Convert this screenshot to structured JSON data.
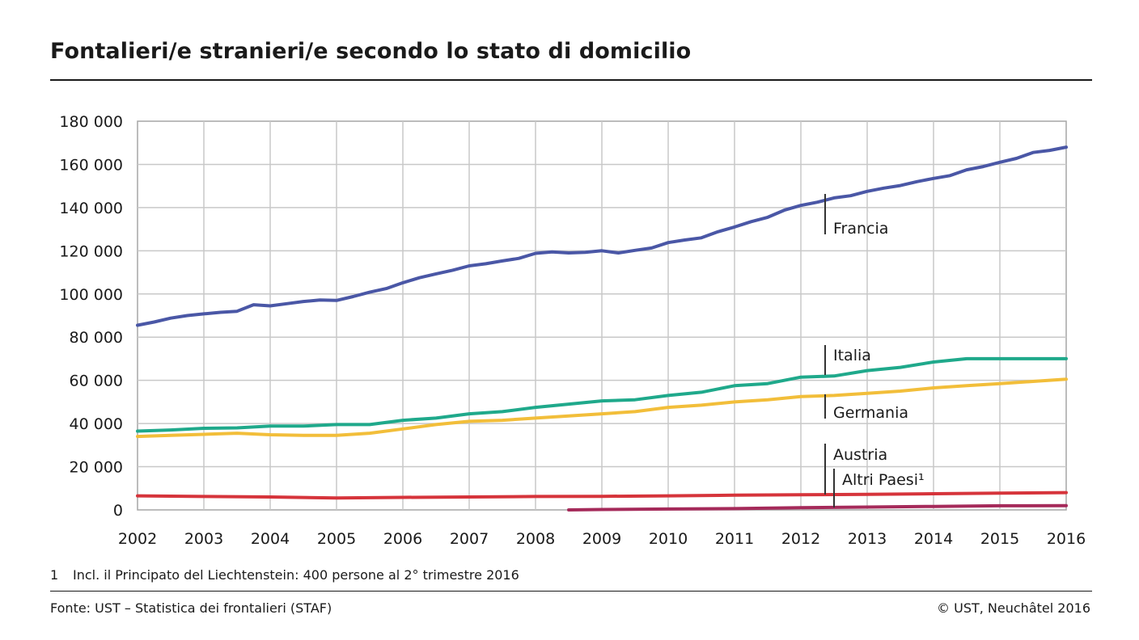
{
  "header": {
    "title": "Fontalieri/e stranieri/e secondo lo stato di domicilio"
  },
  "footer": {
    "footnote_number": "1",
    "footnote_text": "Incl. il Principato del Liechtenstein: 400 persone al 2° trimestre 2016",
    "source": "Fonte: UST – Statistica dei frontalieri (STAF)",
    "copyright": "© UST, Neuchâtel 2016"
  },
  "chart_data": {
    "type": "line",
    "xlim": [
      2002,
      2016
    ],
    "ylim": [
      0,
      180000
    ],
    "grid": true,
    "xticks": [
      "2002",
      "2003",
      "2004",
      "2005",
      "2006",
      "2007",
      "2008",
      "2009",
      "2010",
      "2011",
      "2012",
      "2013",
      "2014",
      "2015",
      "2016"
    ],
    "yticks": [
      "0",
      "20 000",
      "40 000",
      "60 000",
      "80 000",
      "100 000",
      "120 000",
      "140 000",
      "160 000",
      "180 000"
    ],
    "ytick_values": [
      0,
      20000,
      40000,
      60000,
      80000,
      100000,
      120000,
      140000,
      160000,
      180000
    ],
    "series": [
      {
        "name": "Francia",
        "color": "#4a57a6",
        "x": [
          2002.0,
          2002.25,
          2002.5,
          2002.75,
          2003.0,
          2003.25,
          2003.5,
          2003.75,
          2004.0,
          2004.25,
          2004.5,
          2004.75,
          2005.0,
          2005.25,
          2005.5,
          2005.75,
          2006.0,
          2006.25,
          2006.5,
          2006.75,
          2007.0,
          2007.25,
          2007.5,
          2007.75,
          2008.0,
          2008.25,
          2008.5,
          2008.75,
          2009.0,
          2009.25,
          2009.5,
          2009.75,
          2010.0,
          2010.25,
          2010.5,
          2010.75,
          2011.0,
          2011.25,
          2011.5,
          2011.75,
          2012.0,
          2012.25,
          2012.5,
          2012.75,
          2013.0,
          2013.25,
          2013.5,
          2013.75,
          2014.0,
          2014.25,
          2014.5,
          2014.75,
          2015.0,
          2015.25,
          2015.5,
          2015.75,
          2016.0
        ],
        "values": [
          85500,
          87000,
          88800,
          90000,
          90800,
          91500,
          92000,
          95000,
          94500,
          95500,
          96500,
          97200,
          97000,
          98800,
          100800,
          102500,
          105200,
          107500,
          109300,
          111000,
          113000,
          114000,
          115300,
          116500,
          118800,
          119500,
          119000,
          119300,
          120000,
          119000,
          120200,
          121300,
          123800,
          125000,
          126000,
          128800,
          131000,
          133500,
          135500,
          138800,
          141000,
          142500,
          144500,
          145500,
          147500,
          149000,
          150200,
          152000,
          153500,
          154800,
          157500,
          159000,
          161000,
          162800,
          165500,
          166500,
          168000
        ]
      },
      {
        "name": "Italia",
        "color": "#1fa98b",
        "x": [
          2002.0,
          2002.5,
          2003.0,
          2003.5,
          2004.0,
          2004.5,
          2005.0,
          2005.5,
          2006.0,
          2006.5,
          2007.0,
          2007.5,
          2008.0,
          2008.5,
          2009.0,
          2009.5,
          2010.0,
          2010.5,
          2011.0,
          2011.5,
          2012.0,
          2012.5,
          2013.0,
          2013.5,
          2014.0,
          2014.5,
          2015.0,
          2015.5,
          2016.0
        ],
        "values": [
          36500,
          37000,
          37800,
          38000,
          38800,
          38800,
          39500,
          39500,
          41500,
          42500,
          44500,
          45500,
          47500,
          49000,
          50500,
          51000,
          53000,
          54500,
          57500,
          58500,
          61500,
          62000,
          64500,
          66000,
          68500,
          70000,
          70000,
          70000,
          70000
        ]
      },
      {
        "name": "Germania",
        "color": "#f2be3a",
        "x": [
          2002.0,
          2002.5,
          2003.0,
          2003.5,
          2004.0,
          2004.5,
          2005.0,
          2005.5,
          2006.0,
          2006.5,
          2007.0,
          2007.5,
          2008.0,
          2008.5,
          2009.0,
          2009.5,
          2010.0,
          2010.5,
          2011.0,
          2011.5,
          2012.0,
          2012.5,
          2013.0,
          2013.5,
          2014.0,
          2014.5,
          2015.0,
          2015.5,
          2016.0
        ],
        "values": [
          34000,
          34500,
          35000,
          35500,
          34800,
          34500,
          34500,
          35500,
          37500,
          39500,
          41000,
          41500,
          42500,
          43500,
          44500,
          45500,
          47500,
          48500,
          50000,
          51000,
          52500,
          53000,
          54000,
          55000,
          56500,
          57500,
          58500,
          59500,
          60500
        ]
      },
      {
        "name": "Austria",
        "color": "#d6343b",
        "x": [
          2002.0,
          2003.0,
          2004.0,
          2005.0,
          2006.0,
          2007.0,
          2008.0,
          2009.0,
          2010.0,
          2011.0,
          2012.0,
          2013.0,
          2014.0,
          2015.0,
          2016.0
        ],
        "values": [
          6500,
          6200,
          6000,
          5500,
          5800,
          6000,
          6200,
          6300,
          6500,
          6800,
          7000,
          7200,
          7500,
          7800,
          8000
        ]
      },
      {
        "name": "Altri Paesi¹",
        "color": "#a52a5a",
        "x": [
          2008.5,
          2009.0,
          2010.0,
          2011.0,
          2012.0,
          2013.0,
          2014.0,
          2015.0,
          2016.0
        ],
        "values": [
          0,
          200,
          400,
          600,
          1000,
          1300,
          1600,
          1900,
          2000
        ]
      }
    ]
  }
}
